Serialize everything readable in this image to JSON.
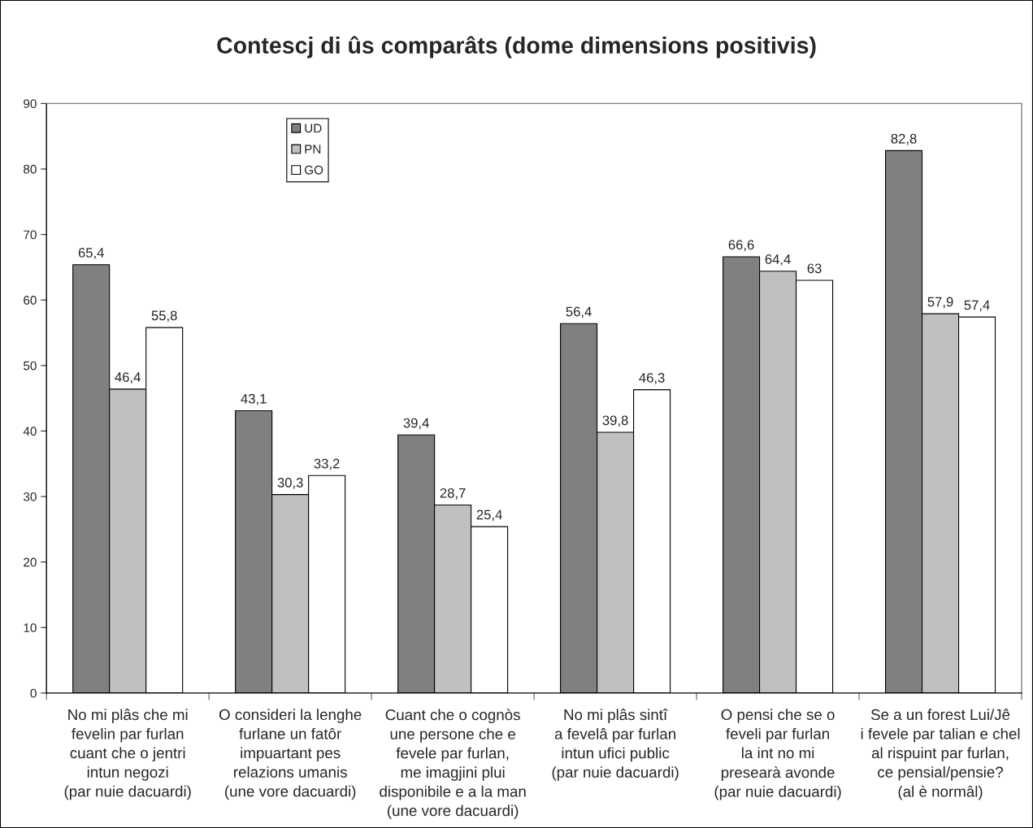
{
  "chart_data": {
    "type": "bar",
    "title": "Contescj di ûs comparâts (dome dimensions positivis)",
    "categories": [
      "No mi plâs che mi\nfevelin par furlan\ncuant che o jentri\nintun negozi\n(par nuie dacuardi)",
      "O consideri la lenghe\nfurlane un fatôr\nimpuartant pes\nrelazions umanis\n(une vore dacuardi)",
      "Cuant che o cognòs\nune persone che e\nfevele par furlan,\nme imagjini plui\ndisponibile e a la man\n(une vore dacuardi)",
      "No mi plâs sintî\na fevelâ par furlan\nintun ufici public\n(par nuie dacuardi)",
      "O pensi che se o\nfeveli par furlan\nla int no mi\npresearà avonde\n(par nuie dacuardi)",
      "Se a un forest Lui/Jê\ni fevele par talian e chel\nal rispuint par furlan,\nce pensial/pensie?\n(al è normâl)"
    ],
    "series": [
      {
        "name": "UD",
        "color": "#808080",
        "values": [
          65.4,
          43.1,
          39.4,
          56.4,
          66.6,
          82.8
        ],
        "value_labels": [
          "65,4",
          "43,1",
          "39,4",
          "56,4",
          "66,6",
          "82,8"
        ]
      },
      {
        "name": "PN",
        "color": "#c0c0c0",
        "values": [
          46.4,
          30.3,
          28.7,
          39.8,
          64.4,
          57.9
        ],
        "value_labels": [
          "46,4",
          "30,3",
          "28,7",
          "39,8",
          "64,4",
          "57,9"
        ]
      },
      {
        "name": "GO",
        "color": "#ffffff",
        "values": [
          55.8,
          33.2,
          25.4,
          46.3,
          63,
          57.4
        ],
        "value_labels": [
          "55,8",
          "33,2",
          "25,4",
          "46,3",
          "63",
          "57,4"
        ]
      }
    ],
    "ylim": [
      0,
      90
    ],
    "yticks": [
      0,
      10,
      20,
      30,
      40,
      50,
      60,
      70,
      80,
      90
    ],
    "legend": "top left"
  }
}
